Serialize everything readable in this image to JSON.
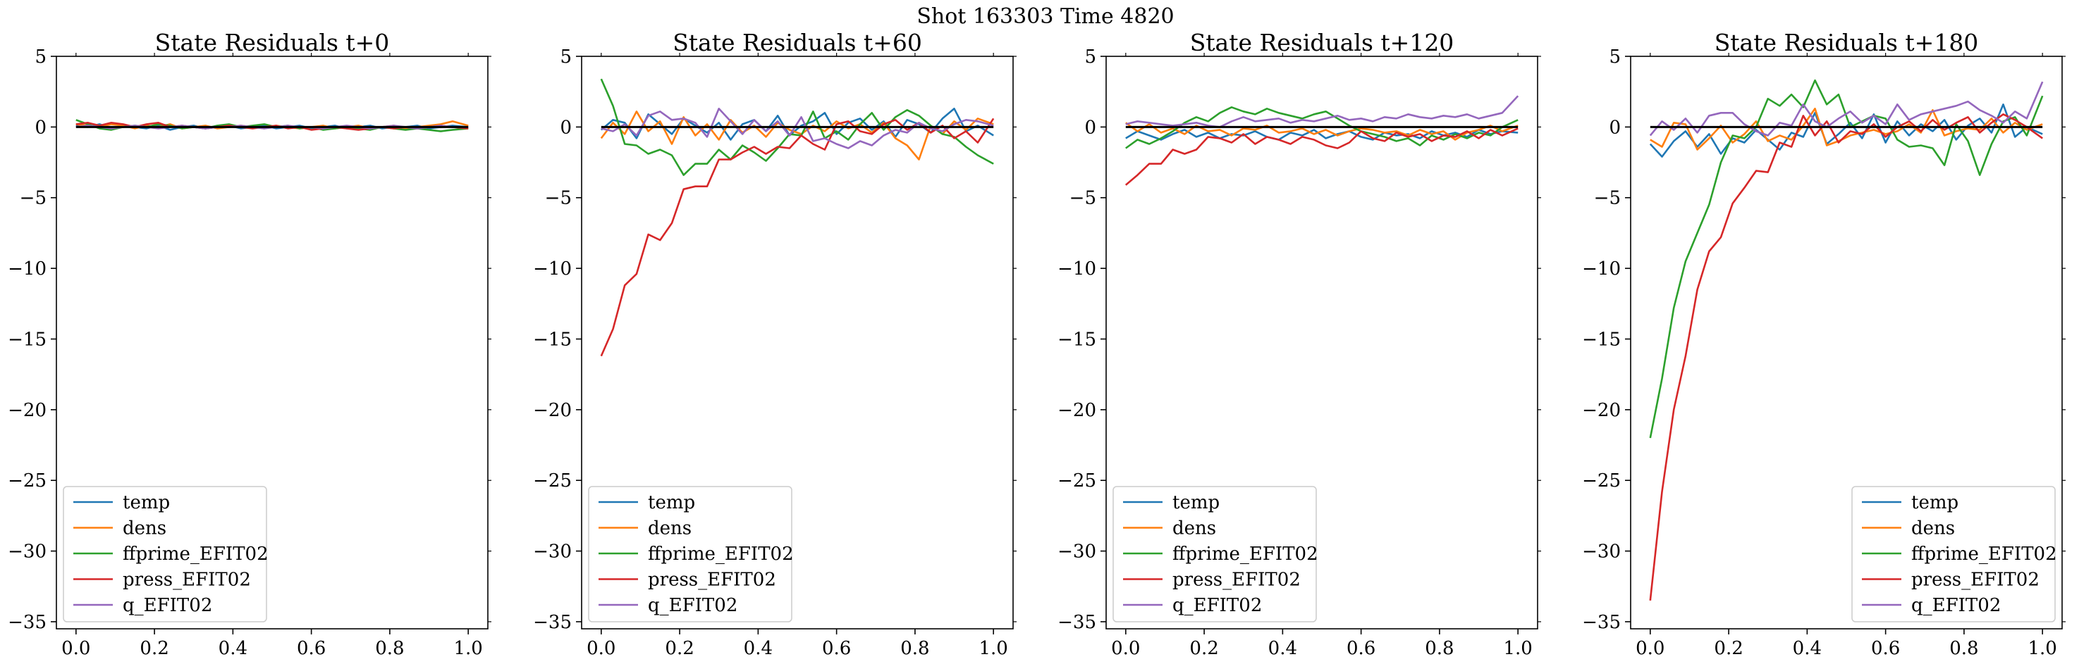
{
  "figure": {
    "title": "Shot 163303   Time 4820"
  },
  "colors": {
    "temp": "#1f77b4",
    "dens": "#ff7f0e",
    "ffprime_EFIT02": "#2ca02c",
    "press_EFIT02": "#d62728",
    "q_EFIT02": "#9467bd",
    "zero_line": "#000000"
  },
  "chart_data": [
    {
      "type": "line",
      "title": "State Residuals t+0",
      "xlim": [
        -0.05,
        1.05
      ],
      "ylim": [
        -35.5,
        5.0
      ],
      "xticks": [
        0.0,
        0.2,
        0.4,
        0.6,
        0.8,
        1.0
      ],
      "xtick_labels": [
        "0.0",
        "0.2",
        "0.4",
        "0.6",
        "0.8",
        "1.0"
      ],
      "yticks": [
        5,
        0,
        -5,
        -10,
        -15,
        -20,
        -25,
        -30,
        -35
      ],
      "ytick_labels": [
        "5",
        "0",
        "−5",
        "−10",
        "−15",
        "−20",
        "−25",
        "−30",
        "−35"
      ],
      "legend_position": "lower-left",
      "x": [
        0.0,
        0.03,
        0.06,
        0.09,
        0.12,
        0.15,
        0.18,
        0.21,
        0.24,
        0.27,
        0.3,
        0.33,
        0.36,
        0.39,
        0.42,
        0.45,
        0.48,
        0.51,
        0.54,
        0.57,
        0.6,
        0.63,
        0.66,
        0.69,
        0.72,
        0.75,
        0.78,
        0.81,
        0.84,
        0.87,
        0.9,
        0.93,
        0.96,
        1.0
      ],
      "series": [
        {
          "name": "temp",
          "values": [
            0.1,
            0.0,
            0.2,
            -0.1,
            0.1,
            0.0,
            -0.1,
            0.1,
            -0.2,
            0.0,
            0.1,
            -0.1,
            0.0,
            0.1,
            -0.1,
            0.0,
            0.1,
            -0.1,
            0.0,
            0.1,
            -0.1,
            0.0,
            0.1,
            -0.1,
            0.0,
            0.1,
            -0.1,
            0.0,
            0.0,
            0.1,
            -0.1,
            0.0,
            0.1,
            0.0
          ]
        },
        {
          "name": "dens",
          "values": [
            0.2,
            0.1,
            0.0,
            0.2,
            0.1,
            -0.1,
            0.1,
            0.0,
            0.2,
            -0.1,
            0.0,
            0.1,
            -0.1,
            0.0,
            0.1,
            0.0,
            -0.1,
            0.1,
            0.0,
            -0.1,
            0.0,
            0.1,
            -0.1,
            0.0,
            0.1,
            -0.1,
            0.0,
            0.1,
            -0.1,
            0.0,
            0.1,
            0.2,
            0.4,
            0.1
          ]
        },
        {
          "name": "ffprime_EFIT02",
          "values": [
            0.5,
            0.2,
            -0.1,
            -0.2,
            0.0,
            0.1,
            0.0,
            0.2,
            0.1,
            -0.1,
            0.0,
            -0.1,
            0.1,
            0.2,
            0.0,
            0.1,
            0.2,
            0.0,
            0.1,
            -0.1,
            0.0,
            -0.2,
            -0.1,
            0.0,
            -0.1,
            -0.2,
            0.0,
            -0.1,
            -0.2,
            -0.1,
            -0.2,
            -0.3,
            -0.2,
            -0.1
          ]
        },
        {
          "name": "press_EFIT02",
          "values": [
            0.2,
            0.3,
            0.1,
            0.3,
            0.2,
            0.0,
            0.2,
            0.3,
            0.0,
            0.1,
            0.0,
            -0.1,
            0.0,
            0.1,
            0.0,
            -0.1,
            0.0,
            0.1,
            -0.1,
            0.0,
            -0.2,
            -0.1,
            0.0,
            -0.1,
            -0.2,
            -0.1,
            0.0,
            -0.1,
            0.0,
            -0.1,
            0.0,
            0.1,
            0.0,
            -0.1
          ]
        },
        {
          "name": "q_EFIT02",
          "values": [
            0.0,
            0.1,
            0.0,
            -0.1,
            0.0,
            0.1,
            0.0,
            -0.1,
            0.0,
            0.1,
            0.0,
            -0.1,
            0.0,
            0.0,
            0.1,
            0.0,
            -0.1,
            0.0,
            0.1,
            0.0,
            0.0,
            -0.1,
            0.0,
            0.1,
            0.0,
            -0.1,
            0.0,
            0.1,
            0.0,
            -0.1,
            0.0,
            0.1,
            0.0,
            0.0
          ]
        }
      ]
    },
    {
      "type": "line",
      "title": "State Residuals t+60",
      "xlim": [
        -0.05,
        1.05
      ],
      "ylim": [
        -35.5,
        5.0
      ],
      "xticks": [
        0.0,
        0.2,
        0.4,
        0.6,
        0.8,
        1.0
      ],
      "xtick_labels": [
        "0.0",
        "0.2",
        "0.4",
        "0.6",
        "0.8",
        "1.0"
      ],
      "yticks": [
        5,
        0,
        -5,
        -10,
        -15,
        -20,
        -25,
        -30,
        -35
      ],
      "ytick_labels": [
        "5",
        "0",
        "−5",
        "−10",
        "−15",
        "−20",
        "−25",
        "−30",
        "−35"
      ],
      "legend_position": "lower-left",
      "x": [
        0.0,
        0.03,
        0.06,
        0.09,
        0.12,
        0.15,
        0.18,
        0.21,
        0.24,
        0.27,
        0.3,
        0.33,
        0.36,
        0.39,
        0.42,
        0.45,
        0.48,
        0.51,
        0.54,
        0.57,
        0.6,
        0.63,
        0.66,
        0.69,
        0.72,
        0.75,
        0.78,
        0.81,
        0.84,
        0.87,
        0.9,
        0.93,
        0.96,
        1.0
      ],
      "series": [
        {
          "name": "temp",
          "values": [
            -0.2,
            0.5,
            0.3,
            -0.8,
            0.9,
            0.2,
            -0.5,
            0.6,
            0.1,
            -0.4,
            0.3,
            -0.9,
            0.2,
            0.5,
            -0.3,
            0.8,
            -0.6,
            0.1,
            0.4,
            1.0,
            -0.5,
            0.3,
            0.6,
            -0.2,
            0.4,
            -0.7,
            0.5,
            0.2,
            -0.4,
            0.6,
            1.3,
            -0.3,
            0.1,
            -0.6
          ]
        },
        {
          "name": "dens",
          "values": [
            -0.8,
            0.3,
            -0.5,
            1.1,
            -0.3,
            0.4,
            -1.2,
            0.7,
            -0.6,
            0.2,
            -0.9,
            0.5,
            -0.4,
            0.1,
            -0.7,
            0.3,
            -0.2,
            -0.5,
            0.1,
            -0.3,
            0.4,
            -0.1,
            0.2,
            -0.4,
            0.3,
            -0.8,
            -1.3,
            -2.3,
            0.1,
            -0.5,
            0.4,
            -0.2,
            0.6,
            0.2
          ]
        },
        {
          "name": "ffprime_EFIT02",
          "values": [
            3.4,
            1.5,
            -1.2,
            -1.3,
            -1.9,
            -1.6,
            -2.0,
            -3.4,
            -2.6,
            -2.6,
            -1.6,
            -2.3,
            -1.3,
            -1.8,
            -2.4,
            -1.5,
            -0.5,
            -0.6,
            1.1,
            -0.8,
            -0.3,
            -0.9,
            0.2,
            1.0,
            -0.2,
            0.7,
            1.2,
            0.8,
            0.1,
            -0.5,
            -0.7,
            -1.4,
            -2.0,
            -2.6
          ]
        },
        {
          "name": "press_EFIT02",
          "values": [
            -16.2,
            -14.3,
            -11.2,
            -10.4,
            -7.6,
            -8.0,
            -6.8,
            -4.4,
            -4.2,
            -4.2,
            -2.3,
            -2.3,
            -1.8,
            -1.4,
            -1.9,
            -1.4,
            -1.5,
            -0.6,
            -1.2,
            -1.6,
            0.2,
            0.4,
            -0.3,
            -0.5,
            0.2,
            0.5,
            -0.2,
            0.3,
            -0.4,
            0.1,
            -0.8,
            -0.3,
            -1.1,
            0.6
          ]
        },
        {
          "name": "q_EFIT02",
          "values": [
            -0.1,
            -0.3,
            0.2,
            -0.6,
            0.8,
            1.1,
            0.5,
            0.6,
            0.3,
            -0.7,
            1.3,
            0.4,
            -0.5,
            0.5,
            -0.3,
            0.4,
            -0.6,
            0.7,
            -1.0,
            -0.8,
            -1.2,
            -1.5,
            -1.0,
            -1.3,
            -0.6,
            -0.2,
            -0.4,
            0.3,
            -0.1,
            -0.3,
            0.2,
            0.5,
            0.4,
            0.1
          ]
        }
      ]
    },
    {
      "type": "line",
      "title": "State Residuals t+120",
      "xlim": [
        -0.05,
        1.05
      ],
      "ylim": [
        -35.5,
        5.0
      ],
      "xticks": [
        0.0,
        0.2,
        0.4,
        0.6,
        0.8,
        1.0
      ],
      "xtick_labels": [
        "0.0",
        "0.2",
        "0.4",
        "0.6",
        "0.8",
        "1.0"
      ],
      "yticks": [
        5,
        0,
        -5,
        -10,
        -15,
        -20,
        -25,
        -30,
        -35
      ],
      "ytick_labels": [
        "5",
        "0",
        "−5",
        "−10",
        "−15",
        "−20",
        "−25",
        "−30",
        "−35"
      ],
      "legend_position": "lower-left",
      "x": [
        0.0,
        0.03,
        0.06,
        0.09,
        0.12,
        0.15,
        0.18,
        0.21,
        0.24,
        0.27,
        0.3,
        0.33,
        0.36,
        0.39,
        0.42,
        0.45,
        0.48,
        0.51,
        0.54,
        0.57,
        0.6,
        0.63,
        0.66,
        0.69,
        0.72,
        0.75,
        0.78,
        0.81,
        0.84,
        0.87,
        0.9,
        0.93,
        0.96,
        1.0
      ],
      "series": [
        {
          "name": "temp",
          "values": [
            -0.8,
            -0.3,
            -0.6,
            -0.9,
            -0.5,
            -0.2,
            -0.7,
            -0.4,
            -0.8,
            -0.5,
            -0.6,
            -0.3,
            -0.7,
            -0.9,
            -0.4,
            -0.6,
            -0.2,
            -0.8,
            -0.5,
            -0.3,
            -0.7,
            -0.9,
            -0.4,
            -0.6,
            -0.5,
            -0.8,
            -0.3,
            -0.6,
            -0.4,
            -0.7,
            -0.2,
            -0.5,
            -0.3,
            -0.4
          ]
        },
        {
          "name": "dens",
          "values": [
            0.3,
            -0.3,
            0.2,
            -0.4,
            -0.1,
            -0.5,
            0.1,
            -0.3,
            -0.2,
            -0.6,
            -0.1,
            -0.2,
            0.1,
            -0.4,
            -0.3,
            -0.1,
            -0.5,
            -0.2,
            -0.6,
            -0.3,
            -0.1,
            -0.2,
            -0.4,
            -0.3,
            -0.6,
            -0.2,
            -0.5,
            -0.3,
            -0.9,
            -0.4,
            -0.2,
            0.1,
            -0.3,
            0.1
          ]
        },
        {
          "name": "ffprime_EFIT02",
          "values": [
            -1.5,
            -0.9,
            -1.2,
            -0.8,
            -0.3,
            0.3,
            0.7,
            0.4,
            1.0,
            1.4,
            1.1,
            0.9,
            1.3,
            1.0,
            0.8,
            0.6,
            0.9,
            1.1,
            0.6,
            0.1,
            -0.3,
            -0.5,
            -0.7,
            -1.0,
            -0.8,
            -1.3,
            -0.6,
            -0.9,
            -0.5,
            -0.8,
            -0.4,
            -0.6,
            0.0,
            0.5
          ]
        },
        {
          "name": "press_EFIT02",
          "values": [
            -4.1,
            -3.4,
            -2.6,
            -2.6,
            -1.6,
            -1.9,
            -1.6,
            -0.7,
            -0.8,
            -1.1,
            -0.5,
            -1.2,
            -0.7,
            -0.9,
            -1.2,
            -0.7,
            -0.9,
            -1.3,
            -1.5,
            -1.1,
            -0.3,
            -0.8,
            -1.0,
            -0.4,
            -0.7,
            -0.5,
            -1.0,
            -0.6,
            -0.7,
            -0.3,
            -0.8,
            -0.2,
            -0.6,
            -0.1
          ]
        },
        {
          "name": "q_EFIT02",
          "values": [
            0.2,
            0.4,
            0.3,
            0.2,
            0.1,
            0.2,
            0.3,
            0.1,
            0.0,
            0.4,
            0.7,
            0.4,
            0.5,
            0.6,
            0.3,
            0.5,
            0.4,
            0.6,
            0.8,
            0.5,
            0.6,
            0.4,
            0.7,
            0.6,
            0.9,
            0.7,
            0.6,
            0.8,
            0.7,
            0.9,
            0.6,
            0.8,
            1.0,
            2.2
          ]
        }
      ]
    },
    {
      "type": "line",
      "title": "State Residuals t+180",
      "xlim": [
        -0.05,
        1.05
      ],
      "ylim": [
        -35.5,
        5.0
      ],
      "xticks": [
        0.0,
        0.2,
        0.4,
        0.6,
        0.8,
        1.0
      ],
      "xtick_labels": [
        "0.0",
        "0.2",
        "0.4",
        "0.6",
        "0.8",
        "1.0"
      ],
      "yticks": [
        5,
        0,
        -5,
        -10,
        -15,
        -20,
        -25,
        -30,
        -35
      ],
      "ytick_labels": [
        "5",
        "0",
        "−5",
        "−10",
        "−15",
        "−20",
        "−25",
        "−30",
        "−35"
      ],
      "legend_position": "lower-right",
      "x": [
        0.0,
        0.03,
        0.06,
        0.09,
        0.12,
        0.15,
        0.18,
        0.21,
        0.24,
        0.27,
        0.3,
        0.33,
        0.36,
        0.39,
        0.42,
        0.45,
        0.48,
        0.51,
        0.54,
        0.57,
        0.6,
        0.63,
        0.66,
        0.69,
        0.72,
        0.75,
        0.78,
        0.81,
        0.84,
        0.87,
        0.9,
        0.93,
        0.96,
        1.0
      ],
      "series": [
        {
          "name": "temp",
          "values": [
            -1.2,
            -2.1,
            -1.0,
            -0.3,
            -1.4,
            -0.5,
            -1.9,
            -0.8,
            -1.1,
            -0.2,
            -0.9,
            -1.6,
            -0.4,
            -0.7,
            1.0,
            -1.2,
            -0.5,
            0.3,
            -0.8,
            0.9,
            -1.1,
            0.4,
            -0.6,
            0.2,
            -0.3,
            0.5,
            -0.9,
            0.1,
            0.6,
            -0.4,
            1.6,
            -0.7,
            0.0,
            -0.5
          ]
        },
        {
          "name": "dens",
          "values": [
            -0.9,
            -1.4,
            0.3,
            0.2,
            -1.6,
            -0.8,
            0.1,
            -1.1,
            -0.5,
            0.4,
            -1.0,
            -0.6,
            -0.9,
            0.1,
            1.3,
            -1.3,
            -1.0,
            -0.6,
            -0.4,
            -0.2,
            -0.5,
            -0.3,
            0.2,
            -0.4,
            1.2,
            -0.6,
            -0.3,
            -0.1,
            -0.2,
            0.6,
            -0.4,
            0.3,
            -0.2,
            0.2
          ]
        },
        {
          "name": "ffprime_EFIT02",
          "values": [
            -22.0,
            -17.8,
            -12.8,
            -9.5,
            -7.5,
            -5.5,
            -2.5,
            -0.6,
            -0.8,
            0.0,
            2.0,
            1.5,
            2.3,
            1.4,
            3.3,
            1.6,
            2.3,
            0.0,
            0.4,
            0.8,
            0.6,
            -0.9,
            -1.4,
            -1.3,
            -1.5,
            -2.7,
            0.2,
            -1.0,
            -3.4,
            -1.2,
            0.4,
            0.7,
            -0.6,
            2.2
          ]
        },
        {
          "name": "press_EFIT02",
          "values": [
            -33.5,
            -25.8,
            -20.0,
            -16.2,
            -11.5,
            -8.8,
            -7.8,
            -5.4,
            -4.3,
            -3.1,
            -3.2,
            -1.1,
            -1.4,
            0.8,
            -0.6,
            0.4,
            -1.1,
            -0.3,
            -0.5,
            0.2,
            -0.7,
            0.0,
            0.4,
            -0.3,
            0.5,
            -0.2,
            0.3,
            0.7,
            -0.4,
            0.3,
            0.9,
            0.5,
            0.0,
            -0.8
          ]
        },
        {
          "name": "q_EFIT02",
          "values": [
            -0.6,
            0.4,
            -0.2,
            0.6,
            -0.4,
            0.8,
            1.0,
            1.0,
            0.2,
            -0.3,
            -0.6,
            0.3,
            0.1,
            1.6,
            0.4,
            0.0,
            0.6,
            1.1,
            0.3,
            0.8,
            0.2,
            1.6,
            0.5,
            0.9,
            1.1,
            1.3,
            1.5,
            1.8,
            1.2,
            0.8,
            0.3,
            1.1,
            0.6,
            3.2
          ]
        }
      ]
    }
  ]
}
